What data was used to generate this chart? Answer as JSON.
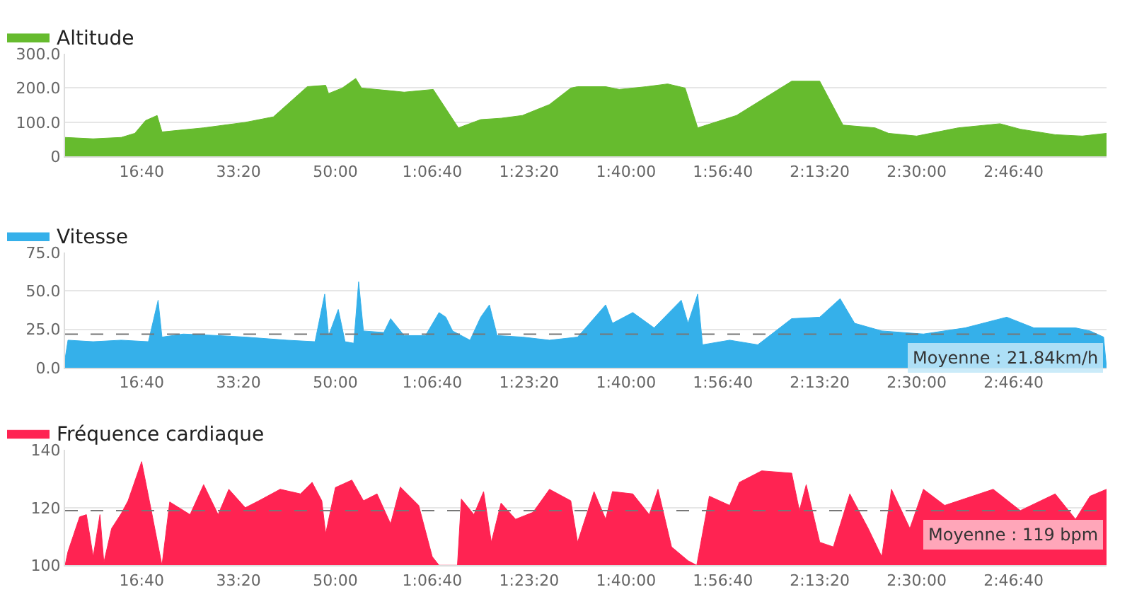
{
  "chart_data": [
    {
      "type": "area",
      "legend": "top left",
      "grid": "y",
      "x": [
        210,
        500,
        790,
        930,
        1040,
        1160,
        1210,
        1640,
        2070,
        2360,
        2710,
        2900,
        2930,
        3070,
        3210,
        3270,
        3570,
        3710,
        4010,
        4270,
        4500,
        4710,
        4930,
        5210,
        5430,
        5500,
        5790,
        5930,
        6210,
        6430,
        6610,
        6740,
        7140,
        7710,
        8000,
        8240,
        8570,
        8710,
        9000,
        9430,
        9860,
        10070,
        10430,
        10710,
        10960
      ],
      "series": [
        {
          "name": "Altitude",
          "color": "#66bb2e",
          "values": [
            56,
            52,
            56,
            68,
            105,
            120,
            72,
            84,
            100,
            116,
            204,
            208,
            184,
            200,
            228,
            200,
            192,
            188,
            196,
            84,
            108,
            112,
            120,
            152,
            200,
            204,
            204,
            196,
            204,
            212,
            200,
            84,
            120,
            220,
            220,
            92,
            84,
            68,
            60,
            84,
            96,
            80,
            64,
            60,
            68
          ]
        }
      ],
      "xlim": [
        210,
        10960
      ],
      "xticks": [
        {
          "value": 1000,
          "label": "16:40"
        },
        {
          "value": 2000,
          "label": "33:20"
        },
        {
          "value": 3000,
          "label": "50:00"
        },
        {
          "value": 4000,
          "label": "1:06:40"
        },
        {
          "value": 5000,
          "label": "1:23:20"
        },
        {
          "value": 6000,
          "label": "1:40:00"
        },
        {
          "value": 7000,
          "label": "1:56:40"
        },
        {
          "value": 8000,
          "label": "2:13:20"
        },
        {
          "value": 9000,
          "label": "2:30:00"
        },
        {
          "value": 10000,
          "label": "2:46:40"
        }
      ],
      "ylim": [
        0,
        300
      ],
      "yticks": [
        {
          "value": 0,
          "label": "0"
        },
        {
          "value": 100,
          "label": "100.0"
        },
        {
          "value": 200,
          "label": "200.0"
        },
        {
          "value": 300,
          "label": "300.0"
        }
      ]
    },
    {
      "type": "area",
      "legend": "top left",
      "grid": "y",
      "x": [
        210,
        240,
        500,
        790,
        1070,
        1170,
        1210,
        1430,
        1790,
        2070,
        2500,
        2790,
        2890,
        2930,
        3030,
        3100,
        3190,
        3240,
        3290,
        3500,
        3570,
        3710,
        3930,
        4070,
        4140,
        4210,
        4390,
        4500,
        4590,
        4670,
        4930,
        5210,
        5500,
        5790,
        5860,
        6070,
        6290,
        6570,
        6640,
        6740,
        6790,
        7070,
        7360,
        7710,
        8000,
        8210,
        8360,
        8640,
        9070,
        9500,
        9930,
        10210,
        10640,
        10790,
        10930,
        10960
      ],
      "series": [
        {
          "name": "Vitesse",
          "color": "#35b0ea",
          "values": [
            6,
            18,
            17,
            18,
            17,
            44,
            20,
            22,
            21,
            20,
            18,
            17,
            48,
            21,
            38,
            17,
            16,
            56,
            24,
            23,
            32,
            21,
            21,
            36,
            33,
            24,
            18,
            33,
            41,
            21,
            20,
            18,
            20,
            41,
            29,
            36,
            26,
            44,
            29,
            48,
            15,
            18,
            15,
            32,
            33,
            45,
            29,
            24,
            22,
            26,
            33,
            26,
            26,
            24,
            20,
            0
          ]
        }
      ],
      "xlim": [
        210,
        10960
      ],
      "xticks": [
        {
          "value": 1000,
          "label": "16:40"
        },
        {
          "value": 2000,
          "label": "33:20"
        },
        {
          "value": 3000,
          "label": "50:00"
        },
        {
          "value": 4000,
          "label": "1:06:40"
        },
        {
          "value": 5000,
          "label": "1:23:20"
        },
        {
          "value": 6000,
          "label": "1:40:00"
        },
        {
          "value": 7000,
          "label": "1:56:40"
        },
        {
          "value": 8000,
          "label": "2:13:20"
        },
        {
          "value": 9000,
          "label": "2:30:00"
        },
        {
          "value": 10000,
          "label": "2:46:40"
        }
      ],
      "ylim": [
        0,
        75
      ],
      "yticks": [
        {
          "value": 0,
          "label": "0.0"
        },
        {
          "value": 25,
          "label": "25.0"
        },
        {
          "value": 50,
          "label": "50.0"
        },
        {
          "value": 75,
          "label": "75.0"
        }
      ],
      "ref_lines": [
        {
          "axis": "y",
          "value": 21.84,
          "label": "Moyenne : 21.84km/h",
          "color": "#777777",
          "line_style": "dashed"
        }
      ]
    },
    {
      "type": "area",
      "legend": "top left",
      "grid": "y",
      "x": [
        210,
        240,
        360,
        430,
        500,
        570,
        610,
        690,
        790,
        860,
        1000,
        1100,
        1210,
        1290,
        1500,
        1640,
        1790,
        1900,
        2070,
        2210,
        2430,
        2640,
        2760,
        2860,
        2900,
        3000,
        3170,
        3290,
        3430,
        3570,
        3670,
        3860,
        4000,
        4070,
        4260,
        4300,
        4430,
        4530,
        4610,
        4710,
        4860,
        5040,
        5210,
        5430,
        5500,
        5670,
        5790,
        5860,
        6070,
        6240,
        6330,
        6470,
        6640,
        6730,
        6860,
        7070,
        7170,
        7400,
        7710,
        7790,
        7860,
        8000,
        8140,
        8310,
        8500,
        8640,
        8740,
        8930,
        9070,
        9290,
        9790,
        10070,
        10430,
        10640,
        10790,
        10960
      ],
      "series": [
        {
          "name": "Fréquence cardiaque",
          "color": "#ff2352",
          "values": [
            100,
            104.8,
            116.8,
            117.6,
            103,
            117.6,
            101,
            112.8,
            118,
            122.4,
            136,
            119,
            100,
            122,
            117.6,
            128,
            117.6,
            126.4,
            120,
            122.4,
            126.4,
            124.8,
            128.8,
            122.4,
            111,
            127,
            129.6,
            122.4,
            124.8,
            114.4,
            127.2,
            120.8,
            103,
            100,
            100,
            123,
            117.6,
            125.6,
            108,
            121.6,
            116,
            118.4,
            126.4,
            122.4,
            108,
            125.6,
            116,
            125.6,
            124.8,
            117.6,
            126.4,
            106.4,
            101.6,
            100,
            124,
            120.8,
            128.8,
            132.8,
            132,
            119,
            128,
            108,
            106.4,
            124.8,
            112.8,
            103,
            126.4,
            112.8,
            126.4,
            120.8,
            126.4,
            119,
            124.8,
            116,
            124,
            126.4
          ]
        }
      ],
      "xlim": [
        210,
        10960
      ],
      "xticks": [
        {
          "value": 1000,
          "label": "16:40"
        },
        {
          "value": 2000,
          "label": "33:20"
        },
        {
          "value": 3000,
          "label": "50:00"
        },
        {
          "value": 4000,
          "label": "1:06:40"
        },
        {
          "value": 5000,
          "label": "1:23:20"
        },
        {
          "value": 6000,
          "label": "1:40:00"
        },
        {
          "value": 7000,
          "label": "1:56:40"
        },
        {
          "value": 8000,
          "label": "2:13:20"
        },
        {
          "value": 9000,
          "label": "2:30:00"
        },
        {
          "value": 10000,
          "label": "2:46:40"
        }
      ],
      "ylim": [
        100,
        140
      ],
      "yticks": [
        100,
        120,
        140
      ],
      "ref_lines": [
        {
          "axis": "y",
          "value": 119,
          "label": "Moyenne : 119 bpm",
          "color": "#777777",
          "line_style": "dashed"
        }
      ]
    }
  ]
}
